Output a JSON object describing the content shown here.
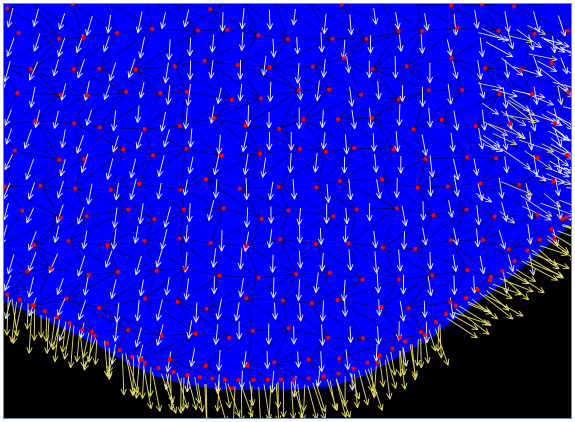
{
  "visualization": {
    "colors": {
      "background": "#000000",
      "fluid": "#0000ff",
      "mesh_edges": "#000066",
      "nodes": "#ff0000",
      "vectors_interior": "#f2f2f2",
      "vectors_boundary": "#e8e06a",
      "frame_border": "#6f86b2"
    },
    "elements": [
      "fluid-region",
      "triangular-mesh",
      "mesh-nodes",
      "velocity-vectors"
    ]
  }
}
